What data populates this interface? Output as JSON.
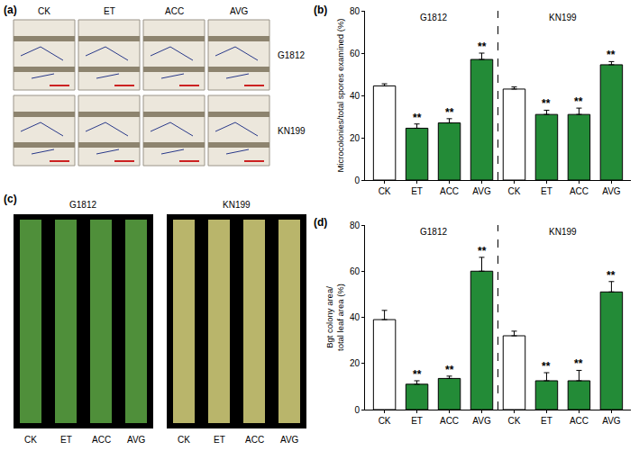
{
  "panels": {
    "a": {
      "label": "(a)",
      "columns": [
        "CK",
        "ET",
        "ACC",
        "AVG"
      ],
      "rows": [
        "G1812",
        "KN199"
      ]
    },
    "c": {
      "label": "(c)",
      "groups": [
        "G1812",
        "KN199"
      ],
      "columns": [
        "CK",
        "ET",
        "ACC",
        "AVG"
      ]
    }
  },
  "chart_data": [
    {
      "label": "(b)",
      "type": "bar",
      "ylabel": [
        "Microcolonies/total spores examined (%)"
      ],
      "groups": [
        "G1812",
        "KN199"
      ],
      "categories": [
        "CK",
        "ET",
        "ACC",
        "AVG",
        "CK",
        "ET",
        "ACC",
        "AVG"
      ],
      "values": [
        44.5,
        24.5,
        27,
        57,
        43,
        31,
        31,
        54.5
      ],
      "errors": [
        1,
        2,
        2,
        3,
        1,
        2,
        3,
        1.5
      ],
      "significance": [
        null,
        "**",
        "**",
        "**",
        null,
        "**",
        "**",
        "**"
      ],
      "colors": [
        "#ffffff",
        "#238b37",
        "#238b37",
        "#238b37",
        "#ffffff",
        "#238b37",
        "#238b37",
        "#238b37"
      ],
      "ylim": [
        0,
        80
      ],
      "yticks": [
        0,
        20,
        40,
        60,
        80
      ],
      "grid": false
    },
    {
      "label": "(d)",
      "type": "bar",
      "ylabel": [
        "Bgt colony area/",
        "total leaf area (%)"
      ],
      "groups": [
        "G1812",
        "KN199"
      ],
      "categories": [
        "CK",
        "ET",
        "ACC",
        "AVG",
        "CK",
        "ET",
        "ACC",
        "AVG"
      ],
      "values": [
        39,
        11,
        13.5,
        60,
        32,
        12.5,
        12.5,
        51
      ],
      "errors": [
        4,
        1.5,
        1,
        6,
        2,
        3.5,
        4.5,
        4.5
      ],
      "significance": [
        null,
        "**",
        "**",
        "**",
        null,
        "**",
        "**",
        "**"
      ],
      "colors": [
        "#ffffff",
        "#238b37",
        "#238b37",
        "#238b37",
        "#ffffff",
        "#238b37",
        "#238b37",
        "#238b37"
      ],
      "ylim": [
        0,
        80
      ],
      "yticks": [
        0,
        20,
        40,
        60,
        80
      ],
      "grid": false
    }
  ]
}
